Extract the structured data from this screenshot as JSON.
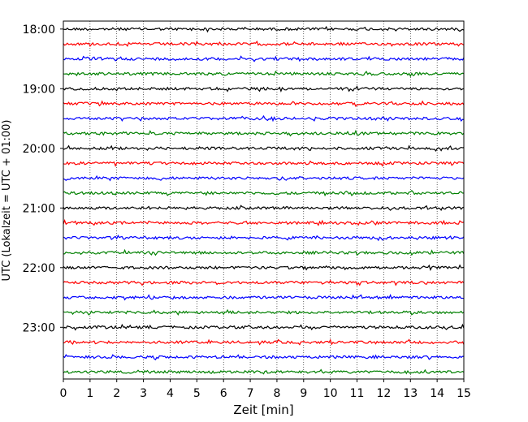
{
  "chart_data": {
    "type": "line",
    "title": "",
    "xlabel": "Zeit  [min]",
    "ylabel": "UTC (Lokalzeit = UTC + 01:00)",
    "xlim": [
      0,
      15
    ],
    "x_ticks": [
      0,
      1,
      2,
      3,
      4,
      5,
      6,
      7,
      8,
      9,
      10,
      11,
      12,
      13,
      14,
      15
    ],
    "x_tick_labels": [
      "0",
      "1",
      "2",
      "3",
      "4",
      "5",
      "6",
      "7",
      "8",
      "9",
      "10",
      "11",
      "12",
      "13",
      "14",
      "15"
    ],
    "y_tick_labels": [
      "18:00",
      "19:00",
      "20:00",
      "21:00",
      "22:00",
      "23:00"
    ],
    "ylim": [
      "23:52",
      "17:52"
    ],
    "grid": "vertical dotted lines at every minute",
    "legend": "none",
    "trace_start_times": [
      "18:00",
      "18:15",
      "18:30",
      "18:45",
      "19:00",
      "19:15",
      "19:30",
      "19:45",
      "20:00",
      "20:15",
      "20:30",
      "20:45",
      "21:00",
      "21:15",
      "21:30",
      "21:45",
      "22:00",
      "22:15",
      "22:30",
      "22:45",
      "23:00",
      "23:15",
      "23:30",
      "23:45"
    ],
    "trace_duration_min": 15,
    "color_cycle": [
      "#000000",
      "#ff0000",
      "#0000ff",
      "#008000"
    ]
  }
}
